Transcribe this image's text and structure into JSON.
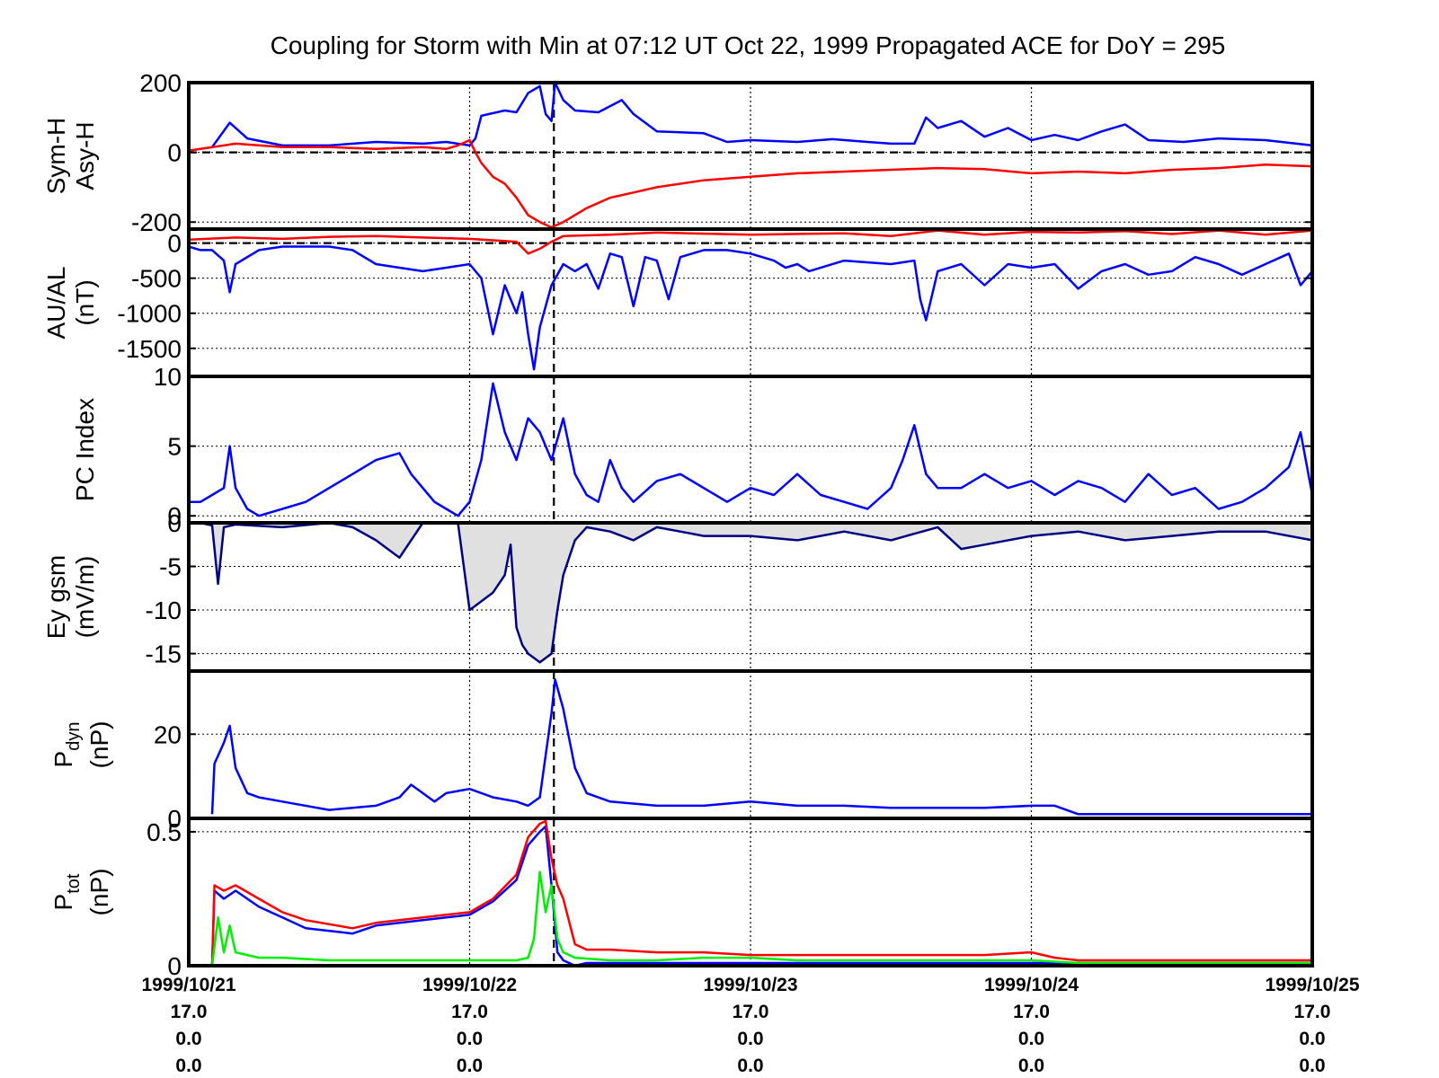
{
  "title": "Coupling for Storm with Min at 07:12 UT Oct 22, 1999  Propagated ACE for DoY = 295",
  "colors": {
    "blue": "#0000ff",
    "red": "#ff0000",
    "green": "#00ee00",
    "navy": "#000080",
    "fill": "#e0e0e0",
    "axis": "#000000"
  },
  "x_axis": {
    "range_hours": [
      0,
      96
    ],
    "date_ticks": [
      {
        "hour": 0,
        "date": "1999/10/21"
      },
      {
        "hour": 24,
        "date": "1999/10/22"
      },
      {
        "hour": 48,
        "date": "1999/10/23"
      },
      {
        "hour": 72,
        "date": "1999/10/24"
      },
      {
        "hour": 96,
        "date": "1999/10/25"
      }
    ],
    "sub_rows": [
      "17.0",
      "0.0",
      "0.0"
    ],
    "storm_min_hour": 31.2
  },
  "chart_data": [
    {
      "id": "symh",
      "type": "line",
      "ylabel": [
        "Sym-H",
        "Asy-H"
      ],
      "ylim": [
        -220,
        200
      ],
      "yticks": [
        200,
        0,
        -200
      ],
      "tick_labels": [
        "200",
        "0",
        "-200"
      ],
      "zero_line": true,
      "series": [
        {
          "color": "blue",
          "x": [
            0,
            2,
            3.5,
            5,
            8,
            12,
            16,
            20,
            22,
            24,
            24.5,
            25,
            27,
            28,
            29,
            30,
            30.5,
            31,
            31.3,
            32,
            33,
            35,
            37,
            38,
            40,
            44,
            46,
            48,
            52,
            55,
            58,
            60,
            62,
            63,
            64,
            66,
            68,
            70,
            72,
            74,
            76,
            78,
            80,
            82,
            85,
            88,
            92,
            96
          ],
          "y": [
            5,
            15,
            85,
            40,
            20,
            20,
            30,
            25,
            30,
            20,
            40,
            105,
            120,
            115,
            170,
            190,
            110,
            90,
            200,
            150,
            120,
            115,
            150,
            110,
            60,
            55,
            30,
            35,
            30,
            38,
            30,
            25,
            25,
            100,
            70,
            90,
            45,
            70,
            35,
            50,
            35,
            60,
            80,
            35,
            30,
            40,
            35,
            20
          ]
        },
        {
          "color": "red",
          "x": [
            0,
            2,
            4,
            8,
            12,
            16,
            20,
            22,
            23,
            24,
            24.5,
            25,
            26,
            27,
            28,
            29,
            30,
            31,
            32,
            34,
            36,
            38,
            40,
            44,
            48,
            52,
            56,
            60,
            64,
            68,
            72,
            76,
            80,
            84,
            88,
            92,
            96
          ],
          "y": [
            5,
            15,
            25,
            15,
            15,
            10,
            15,
            10,
            20,
            35,
            0,
            -30,
            -70,
            -90,
            -130,
            -180,
            -200,
            -215,
            -200,
            -160,
            -130,
            -115,
            -100,
            -80,
            -70,
            -60,
            -55,
            -50,
            -45,
            -48,
            -60,
            -55,
            -60,
            -50,
            -45,
            -35,
            -40
          ]
        }
      ]
    },
    {
      "id": "aual",
      "type": "line",
      "ylabel": [
        "AU/AL",
        "(nT)"
      ],
      "ylim": [
        -1900,
        200
      ],
      "yticks": [
        0,
        -500,
        -1000,
        -1500
      ],
      "tick_labels": [
        "0",
        "-500",
        "-1000",
        "-1500"
      ],
      "zero_line": true,
      "series": [
        {
          "color": "red",
          "x": [
            0,
            4,
            8,
            12,
            16,
            20,
            24,
            26,
            28,
            29,
            30,
            31,
            32,
            36,
            40,
            48,
            56,
            60,
            64,
            68,
            72,
            76,
            80,
            84,
            88,
            92,
            96
          ],
          "y": [
            50,
            80,
            60,
            90,
            100,
            80,
            60,
            40,
            20,
            -150,
            -80,
            20,
            100,
            120,
            150,
            120,
            140,
            100,
            180,
            120,
            160,
            150,
            170,
            130,
            180,
            120,
            180
          ]
        },
        {
          "color": "blue",
          "x": [
            0,
            1,
            2,
            3,
            3.5,
            4,
            6,
            8,
            12,
            14,
            16,
            18,
            20,
            22,
            24,
            25,
            26,
            27,
            28,
            28.5,
            29,
            29.5,
            30,
            31,
            32,
            33,
            34,
            35,
            36,
            37,
            38,
            39,
            40,
            41,
            42,
            44,
            46,
            48,
            50,
            51,
            52,
            53,
            56,
            60,
            62,
            62.5,
            63,
            64,
            66,
            68,
            70,
            72,
            74,
            76,
            78,
            80,
            82,
            84,
            86,
            88,
            90,
            92,
            94,
            95,
            96
          ],
          "y": [
            -50,
            -100,
            -100,
            -250,
            -700,
            -300,
            -100,
            -50,
            -50,
            -100,
            -300,
            -350,
            -400,
            -350,
            -300,
            -500,
            -1300,
            -600,
            -1000,
            -700,
            -1300,
            -1800,
            -1200,
            -600,
            -300,
            -400,
            -300,
            -650,
            -150,
            -200,
            -900,
            -200,
            -250,
            -800,
            -200,
            -100,
            -100,
            -150,
            -250,
            -350,
            -300,
            -400,
            -250,
            -300,
            -250,
            -800,
            -1100,
            -400,
            -300,
            -600,
            -300,
            -350,
            -300,
            -650,
            -400,
            -300,
            -450,
            -400,
            -200,
            -300,
            -450,
            -300,
            -150,
            -600,
            -400
          ]
        }
      ]
    },
    {
      "id": "pc",
      "type": "line",
      "ylabel": [
        "PC Index"
      ],
      "ylim": [
        -0.5,
        10
      ],
      "yticks": [
        10,
        5,
        0
      ],
      "tick_labels": [
        "10",
        "5",
        "0"
      ],
      "zero_line": false,
      "series": [
        {
          "color": "blue",
          "x": [
            0,
            1,
            2,
            3,
            3.5,
            4,
            5,
            6,
            8,
            10,
            12,
            14,
            16,
            18,
            19,
            20,
            21,
            22,
            23,
            24,
            25,
            26,
            27,
            28,
            29,
            30,
            31,
            32,
            33,
            34,
            35,
            36,
            37,
            38,
            40,
            42,
            44,
            46,
            48,
            50,
            52,
            54,
            56,
            58,
            60,
            61,
            62,
            63,
            64,
            66,
            68,
            70,
            72,
            74,
            76,
            78,
            80,
            82,
            84,
            86,
            88,
            90,
            92,
            94,
            95,
            96
          ],
          "y": [
            1,
            1,
            1.5,
            2,
            5,
            2,
            0.5,
            0,
            0.5,
            1,
            2,
            3,
            4,
            4.5,
            3,
            2,
            1,
            0.5,
            0,
            1,
            4,
            9.5,
            6,
            4,
            7,
            6,
            4,
            7,
            3,
            1.5,
            1,
            4,
            2,
            1,
            2.5,
            3,
            2,
            1,
            2,
            1.5,
            3,
            1.5,
            1,
            0.5,
            2,
            4,
            6.5,
            3,
            2,
            2,
            3,
            2,
            2.5,
            1.5,
            2.5,
            2,
            1,
            3,
            1.5,
            2,
            0.5,
            1,
            2,
            3.5,
            6,
            1.5
          ]
        }
      ]
    },
    {
      "id": "ey",
      "type": "area",
      "ylabel": [
        "Ey gsm",
        "(mV/m)"
      ],
      "ylim": [
        -17,
        0
      ],
      "yticks": [
        0,
        -5,
        -10,
        -15
      ],
      "tick_labels": [
        "0",
        "-5",
        "-10",
        "-15"
      ],
      "zero_line": true,
      "series": [
        {
          "color": "navy",
          "fill": true,
          "x": [
            0,
            1,
            2,
            2.5,
            3,
            4,
            8,
            12,
            14,
            16,
            17,
            18,
            19,
            20,
            22,
            23,
            24,
            25,
            26,
            27,
            27.5,
            28,
            28.5,
            29,
            30,
            31,
            31.5,
            32,
            33,
            34,
            36,
            38,
            40,
            42,
            44,
            48,
            52,
            56,
            60,
            64,
            66,
            68,
            72,
            76,
            80,
            84,
            88,
            92,
            96
          ],
          "y": [
            0,
            0,
            -0.3,
            -7,
            -0.5,
            -0.2,
            -0.5,
            0,
            -0.5,
            -2,
            -3,
            -4,
            -2,
            0,
            0,
            0,
            -10,
            -9,
            -8,
            -6,
            -2.5,
            -12,
            -14,
            -15,
            -16,
            -15,
            -10,
            -6,
            -2,
            -0.5,
            -1,
            -2,
            -0.5,
            -1,
            -1.5,
            -1.5,
            -2,
            -1,
            -2,
            -0.5,
            -3,
            -2.5,
            -1.5,
            -1,
            -2,
            -1.5,
            -1,
            -1,
            -2
          ]
        }
      ]
    },
    {
      "id": "pdyn",
      "type": "line",
      "ylabel_html": "pdyn",
      "ylim": [
        0,
        35
      ],
      "yticks": [
        20,
        0
      ],
      "tick_labels": [
        "20",
        "0"
      ],
      "zero_line": false,
      "series": [
        {
          "color": "blue",
          "x": [
            2,
            2.2,
            3,
            3.5,
            4,
            5,
            6,
            8,
            12,
            16,
            18,
            19,
            20,
            21,
            22,
            24,
            26,
            28,
            29,
            30,
            30.5,
            31,
            31.3,
            32,
            33,
            34,
            36,
            40,
            44,
            48,
            52,
            56,
            60,
            64,
            68,
            72,
            74,
            76,
            80,
            84,
            88,
            92,
            96
          ],
          "y": [
            1,
            13,
            18,
            22,
            12,
            6,
            5,
            4,
            2,
            3,
            5,
            8,
            6,
            4,
            6,
            7,
            5,
            4,
            3,
            5,
            15,
            25,
            33,
            26,
            12,
            6,
            4,
            3,
            3,
            4,
            3,
            3,
            2.5,
            2.5,
            2.5,
            3,
            3,
            1,
            1,
            1,
            1,
            1,
            1
          ]
        }
      ]
    },
    {
      "id": "ptot",
      "type": "line",
      "ylabel_html": "ptot",
      "ylim": [
        0,
        0.55
      ],
      "yticks": [
        0.5,
        0
      ],
      "tick_labels": [
        "0.5",
        "0"
      ],
      "zero_line": false,
      "series": [
        {
          "color": "blue",
          "x": [
            2,
            2.2,
            3,
            4,
            6,
            8,
            10,
            14,
            16,
            18,
            20,
            22,
            24,
            26,
            28,
            29,
            30,
            30.5,
            31,
            31.5,
            32,
            33,
            34,
            36,
            40,
            44,
            48,
            52,
            56,
            60,
            64,
            68,
            72,
            76,
            80,
            84,
            88,
            92,
            96
          ],
          "y": [
            0,
            0.28,
            0.25,
            0.28,
            0.22,
            0.18,
            0.14,
            0.12,
            0.15,
            0.16,
            0.17,
            0.18,
            0.19,
            0.24,
            0.32,
            0.45,
            0.5,
            0.52,
            0.3,
            0.05,
            0.02,
            0.0,
            0.01,
            0.01,
            0.01,
            0.01,
            0.01,
            0.01,
            0.01,
            0.01,
            0.01,
            0.01,
            0.01,
            0.01,
            0.01,
            0.01,
            0.01,
            0.01,
            0.01
          ]
        },
        {
          "color": "red",
          "x": [
            2,
            2.2,
            3,
            4,
            6,
            8,
            10,
            14,
            16,
            18,
            20,
            22,
            24,
            26,
            28,
            29,
            30,
            30.5,
            31,
            31.5,
            32,
            33,
            34,
            36,
            40,
            44,
            48,
            52,
            56,
            60,
            64,
            68,
            72,
            74,
            76,
            80,
            84,
            88,
            92,
            96
          ],
          "y": [
            0,
            0.3,
            0.28,
            0.3,
            0.25,
            0.2,
            0.17,
            0.14,
            0.16,
            0.17,
            0.18,
            0.19,
            0.2,
            0.25,
            0.34,
            0.48,
            0.53,
            0.54,
            0.4,
            0.3,
            0.25,
            0.08,
            0.06,
            0.06,
            0.05,
            0.05,
            0.04,
            0.04,
            0.04,
            0.04,
            0.04,
            0.04,
            0.05,
            0.03,
            0.02,
            0.02,
            0.02,
            0.02,
            0.02,
            0.02
          ]
        },
        {
          "color": "green",
          "x": [
            2,
            2.5,
            3,
            3.5,
            4,
            5,
            6,
            8,
            12,
            16,
            20,
            24,
            28,
            29,
            29.5,
            30,
            30.5,
            31,
            31.5,
            32,
            33,
            36,
            40,
            44,
            48,
            52,
            56,
            60,
            64,
            68,
            72,
            76,
            80,
            84,
            88,
            92,
            96
          ],
          "y": [
            0,
            0.18,
            0.05,
            0.15,
            0.05,
            0.04,
            0.03,
            0.03,
            0.02,
            0.02,
            0.02,
            0.02,
            0.02,
            0.03,
            0.1,
            0.35,
            0.2,
            0.3,
            0.1,
            0.05,
            0.03,
            0.02,
            0.02,
            0.03,
            0.03,
            0.02,
            0.02,
            0.02,
            0.02,
            0.02,
            0.02,
            0.01,
            0.01,
            0.01,
            0.01,
            0.01,
            0.01
          ]
        }
      ]
    }
  ]
}
